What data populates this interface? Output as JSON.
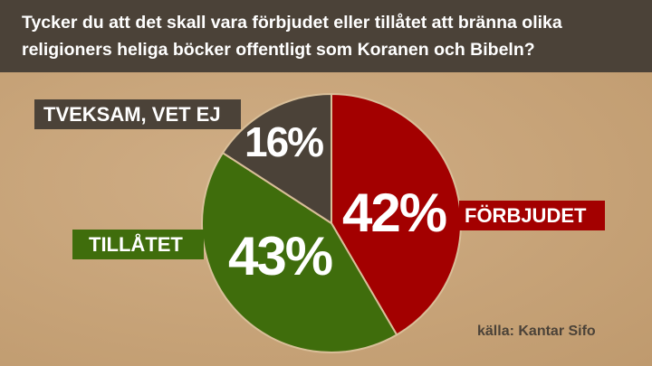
{
  "title": "Tycker du att det skall vara förbjudet eller tillåtet att bränna olika religioners heliga böcker offentligt som Koranen och Bibeln?",
  "source": "källa: Kantar Sifo",
  "chart_data": {
    "type": "pie",
    "title": "Tycker du att det skall vara förbjudet eller tillåtet att bränna olika religioners heliga böcker offentligt som Koranen och Bibeln?",
    "slices": [
      {
        "label": "FÖRBJUDET",
        "value": 42,
        "display": "42%",
        "color": "#a30000"
      },
      {
        "label": "TILLÅTET",
        "value": 43,
        "display": "43%",
        "color": "#3f6d0c"
      },
      {
        "label": "TVEKSAM, VET EJ",
        "value": 16,
        "display": "16%",
        "color": "#4b4238"
      }
    ],
    "start_angle": "12 o'clock",
    "direction": "clockwise",
    "legend": "none (direct labels)"
  }
}
